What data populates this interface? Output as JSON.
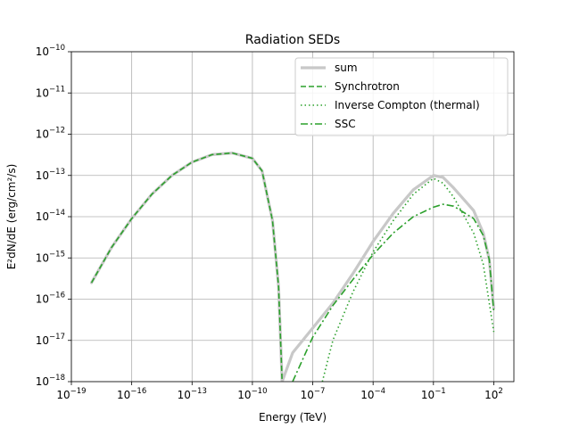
{
  "chart_data": {
    "type": "line",
    "title": "Radiation SEDs",
    "xlabel": "Energy (TeV)",
    "ylabel": "E²dN/dE (erg/cm²/s)",
    "xscale": "log",
    "yscale": "log",
    "xlim": [
      1e-19,
      1000
    ],
    "ylim": [
      1e-18,
      1e-10
    ],
    "grid": true,
    "legend_position": "top-right",
    "x_ticks": [
      {
        "mant": "10",
        "exp": "−19",
        "value": 1e-19
      },
      {
        "mant": "10",
        "exp": "−16",
        "value": 1e-16
      },
      {
        "mant": "10",
        "exp": "−13",
        "value": 1e-13
      },
      {
        "mant": "10",
        "exp": "−10",
        "value": 1e-10
      },
      {
        "mant": "10",
        "exp": "−7",
        "value": 1e-07
      },
      {
        "mant": "10",
        "exp": "−4",
        "value": 0.0001
      },
      {
        "mant": "10",
        "exp": "−1",
        "value": 0.1
      },
      {
        "mant": "10",
        "exp": "2",
        "value": 100
      }
    ],
    "y_ticks": [
      {
        "mant": "10",
        "exp": "−10",
        "value": 1e-10
      },
      {
        "mant": "10",
        "exp": "−11",
        "value": 1e-11
      },
      {
        "mant": "10",
        "exp": "−12",
        "value": 1e-12
      },
      {
        "mant": "10",
        "exp": "−13",
        "value": 1e-13
      },
      {
        "mant": "10",
        "exp": "−14",
        "value": 1e-14
      },
      {
        "mant": "10",
        "exp": "−15",
        "value": 1e-15
      },
      {
        "mant": "10",
        "exp": "−16",
        "value": 1e-16
      },
      {
        "mant": "10",
        "exp": "−17",
        "value": 1e-17
      },
      {
        "mant": "10",
        "exp": "−18",
        "value": 1e-18
      }
    ],
    "series": [
      {
        "name": "sum",
        "color": "#c8c8c8",
        "style": "solid",
        "points": [
          [
            1e-18,
            2.5e-16
          ],
          [
            1e-17,
            1.8e-15
          ],
          [
            1e-16,
            9e-15
          ],
          [
            1e-15,
            3.5e-14
          ],
          [
            1e-14,
            1e-13
          ],
          [
            1e-13,
            2.1e-13
          ],
          [
            1e-12,
            3.2e-13
          ],
          [
            1e-11,
            3.5e-13
          ],
          [
            1e-10,
            2.6e-13
          ],
          [
            3e-10,
            1.3e-13
          ],
          [
            1e-09,
            8e-15
          ],
          [
            2e-09,
            2e-16
          ],
          [
            3e-09,
            1e-18
          ],
          [
            1e-08,
            5e-18
          ],
          [
            1e-07,
            2e-17
          ],
          [
            1e-06,
            8e-17
          ],
          [
            1e-05,
            4.2e-16
          ],
          [
            0.0001,
            2.5e-15
          ],
          [
            0.001,
            1.2e-14
          ],
          [
            0.01,
            4.5e-14
          ],
          [
            0.1,
            1e-13
          ],
          [
            0.3,
            9e-14
          ],
          [
            1,
            5e-14
          ],
          [
            10,
            1.4e-14
          ],
          [
            30,
            4e-15
          ],
          [
            60,
            9e-16
          ],
          [
            100,
            6e-17
          ]
        ]
      },
      {
        "name": "Synchrotron",
        "color": "#2ca02c",
        "style": "dashed",
        "points": [
          [
            1e-18,
            2.5e-16
          ],
          [
            1e-17,
            1.8e-15
          ],
          [
            1e-16,
            9e-15
          ],
          [
            1e-15,
            3.5e-14
          ],
          [
            1e-14,
            1e-13
          ],
          [
            1e-13,
            2.1e-13
          ],
          [
            1e-12,
            3.2e-13
          ],
          [
            1e-11,
            3.5e-13
          ],
          [
            1e-10,
            2.6e-13
          ],
          [
            3e-10,
            1.3e-13
          ],
          [
            1e-09,
            8e-15
          ],
          [
            2e-09,
            2e-16
          ],
          [
            3e-09,
            1e-18
          ]
        ]
      },
      {
        "name": "Inverse Compton (thermal)",
        "color": "#2ca02c",
        "style": "dotted",
        "points": [
          [
            3e-07,
            1e-18
          ],
          [
            1e-06,
            1e-17
          ],
          [
            1e-05,
            1.5e-16
          ],
          [
            0.0001,
            1.4e-15
          ],
          [
            0.001,
            8e-15
          ],
          [
            0.01,
            3.5e-14
          ],
          [
            0.1,
            8.5e-14
          ],
          [
            0.3,
            6.5e-14
          ],
          [
            1,
            3e-14
          ],
          [
            10,
            4e-15
          ],
          [
            30,
            7e-16
          ],
          [
            100,
            1.6e-17
          ]
        ]
      },
      {
        "name": "SSC",
        "color": "#2ca02c",
        "style": "dashdot",
        "points": [
          [
            1e-08,
            1e-18
          ],
          [
            1e-07,
            1.2e-17
          ],
          [
            1e-06,
            7e-17
          ],
          [
            1e-05,
            3e-16
          ],
          [
            0.0001,
            1.2e-15
          ],
          [
            0.001,
            4e-15
          ],
          [
            0.01,
            1e-14
          ],
          [
            0.1,
            1.7e-14
          ],
          [
            0.3,
            2e-14
          ],
          [
            1,
            1.8e-14
          ],
          [
            10,
            9e-15
          ],
          [
            30,
            3.5e-15
          ],
          [
            60,
            9e-16
          ],
          [
            100,
            5e-17
          ]
        ]
      }
    ]
  }
}
